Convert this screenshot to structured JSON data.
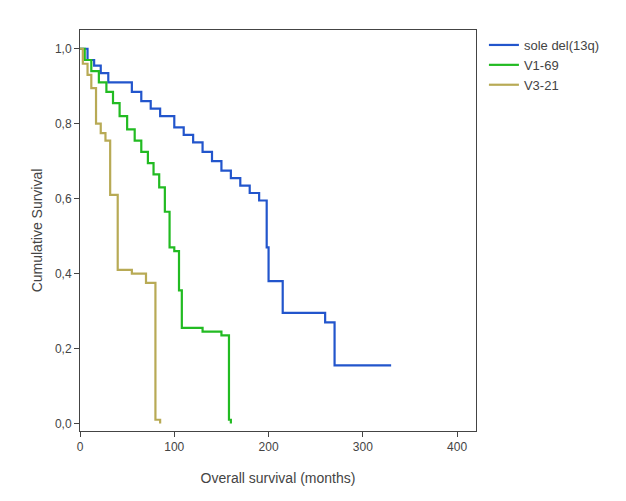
{
  "chart_data": {
    "type": "line",
    "xlabel": "Overall survival (months)",
    "ylabel": "Cumulative Survival",
    "xlim": [
      0,
      420
    ],
    "ylim": [
      -0.02,
      1.05
    ],
    "xticks": [
      0,
      100,
      200,
      300,
      400
    ],
    "yticks": [
      {
        "value": 0.0,
        "label": "0,0"
      },
      {
        "value": 0.2,
        "label": "0,2"
      },
      {
        "value": 0.4,
        "label": "0,4"
      },
      {
        "value": 0.6,
        "label": "0,6"
      },
      {
        "value": 0.8,
        "label": "0,8"
      },
      {
        "value": 1.0,
        "label": "1,0"
      }
    ],
    "grid": false,
    "legend": "right",
    "series": [
      {
        "name": "sole del(13q)",
        "color": "#2255cc",
        "x": [
          0,
          8,
          8,
          15,
          15,
          22,
          22,
          30,
          30,
          55,
          55,
          65,
          65,
          75,
          75,
          85,
          85,
          100,
          100,
          110,
          110,
          120,
          120,
          130,
          130,
          140,
          140,
          150,
          150,
          160,
          160,
          170,
          170,
          180,
          180,
          190,
          190,
          198,
          198,
          200,
          200,
          215,
          215,
          260,
          260,
          270,
          270,
          330
        ],
        "values": [
          1.0,
          1.0,
          0.97,
          0.97,
          0.955,
          0.955,
          0.935,
          0.935,
          0.91,
          0.91,
          0.885,
          0.885,
          0.86,
          0.86,
          0.84,
          0.84,
          0.82,
          0.82,
          0.79,
          0.79,
          0.77,
          0.77,
          0.75,
          0.75,
          0.725,
          0.725,
          0.7,
          0.7,
          0.675,
          0.675,
          0.655,
          0.655,
          0.635,
          0.635,
          0.615,
          0.615,
          0.595,
          0.595,
          0.47,
          0.47,
          0.38,
          0.38,
          0.295,
          0.295,
          0.27,
          0.27,
          0.155,
          0.155
        ]
      },
      {
        "name": "V1-69",
        "color": "#22bb22",
        "x": [
          0,
          5,
          5,
          12,
          12,
          20,
          20,
          28,
          28,
          35,
          35,
          42,
          42,
          50,
          50,
          58,
          58,
          65,
          65,
          72,
          72,
          78,
          78,
          84,
          84,
          90,
          90,
          95,
          95,
          100,
          100,
          105,
          105,
          108,
          108,
          130,
          130,
          150,
          150,
          158,
          158,
          160,
          160
        ],
        "values": [
          1.0,
          1.0,
          0.97,
          0.97,
          0.94,
          0.94,
          0.91,
          0.91,
          0.885,
          0.885,
          0.855,
          0.855,
          0.82,
          0.82,
          0.785,
          0.785,
          0.755,
          0.755,
          0.725,
          0.725,
          0.695,
          0.695,
          0.665,
          0.665,
          0.63,
          0.63,
          0.565,
          0.565,
          0.47,
          0.47,
          0.46,
          0.46,
          0.355,
          0.355,
          0.255,
          0.255,
          0.245,
          0.245,
          0.235,
          0.235,
          0.01,
          0.01,
          0.0
        ]
      },
      {
        "name": "V3-21",
        "color": "#b8aa55",
        "x": [
          0,
          3,
          3,
          8,
          8,
          12,
          12,
          17,
          17,
          22,
          22,
          27,
          27,
          32,
          32,
          40,
          40,
          55,
          55,
          70,
          70,
          80,
          80,
          85,
          85
        ],
        "values": [
          1.0,
          1.0,
          0.96,
          0.96,
          0.93,
          0.93,
          0.895,
          0.895,
          0.8,
          0.8,
          0.775,
          0.775,
          0.755,
          0.755,
          0.61,
          0.61,
          0.41,
          0.41,
          0.4,
          0.4,
          0.375,
          0.375,
          0.01,
          0.01,
          0.0
        ]
      }
    ]
  }
}
